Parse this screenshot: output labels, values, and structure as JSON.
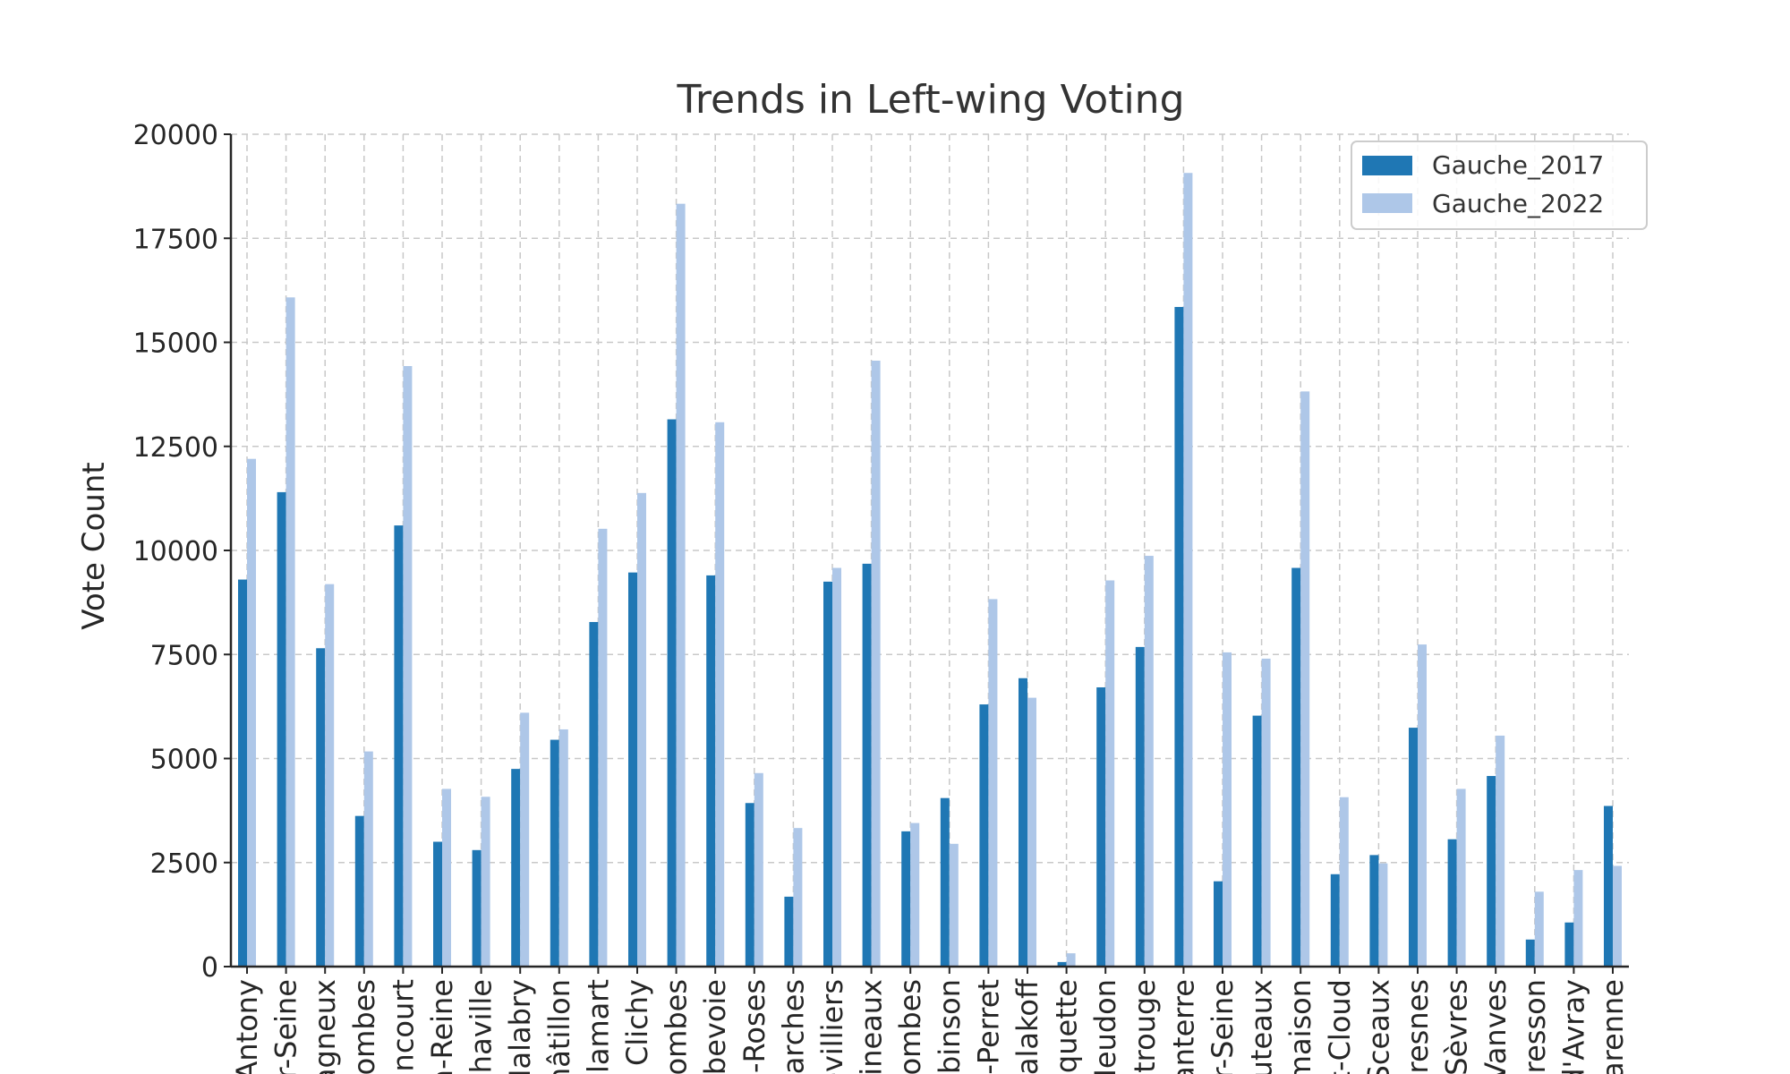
{
  "chart_data": {
    "type": "bar",
    "title": "Trends in Left-wing Voting",
    "xlabel": "",
    "ylabel": "Vote Count",
    "ylim": [
      0,
      20000
    ],
    "yticks": [
      "0",
      "2500",
      "5000",
      "7500",
      "10000",
      "12500",
      "15000",
      "17500",
      "20000"
    ],
    "grid": true,
    "legend_position": "top-right",
    "categories": [
      "Antony",
      "ur-Seine",
      "agneux",
      "lombes",
      "ancourt",
      "a-Reine",
      "Chaville",
      "Malabry",
      "hâtillon",
      "Clamart",
      "Clichy",
      "lombes",
      "rbevoie",
      "x-Roses",
      "Garches",
      "evilliers",
      "lineaux",
      "lombes",
      "obinson",
      "s-Perret",
      "Malakoff",
      "oquette",
      "Meudon",
      "ntrouge",
      "anterre",
      "r-Seine",
      "Puteaux",
      "maison",
      "t-Cloud",
      "Sceaux",
      "uresnes",
      "Sèvres",
      "Vanves",
      "cresson",
      "d'Avray",
      "Garenne"
    ],
    "series": [
      {
        "name": "Gauche_2017",
        "color": "#1f77b4",
        "values": [
          9300,
          11400,
          7650,
          3620,
          10600,
          3000,
          2800,
          4750,
          5450,
          8280,
          9470,
          13150,
          9400,
          3930,
          1680,
          9250,
          9680,
          3250,
          4050,
          6300,
          6930,
          110,
          6710,
          7680,
          15850,
          2050,
          6030,
          9580,
          2220,
          2680,
          5740,
          3060,
          4580,
          650,
          1060,
          3860
        ]
      },
      {
        "name": "Gauche_2022",
        "color": "#aec7e8",
        "values": [
          12200,
          16080,
          9190,
          5170,
          14430,
          4270,
          4080,
          6100,
          5700,
          10520,
          11380,
          18330,
          13080,
          4650,
          3330,
          9580,
          14560,
          3450,
          2950,
          8830,
          6460,
          320,
          9280,
          9870,
          19070,
          7550,
          7400,
          13820,
          4070,
          2480,
          7740,
          4270,
          5550,
          1800,
          2320,
          2420
        ]
      }
    ]
  }
}
